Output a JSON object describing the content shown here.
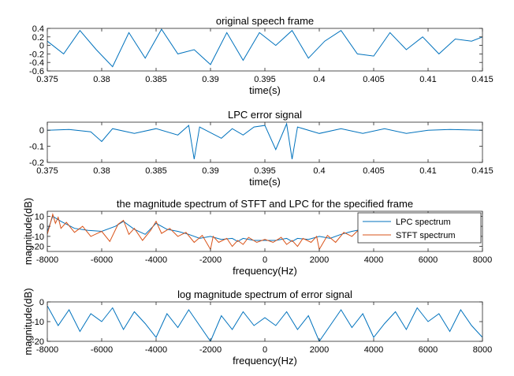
{
  "chart_data": [
    {
      "type": "line",
      "title": "original speech frame",
      "xlabel": "time(s)",
      "ylabel": "",
      "xlim": [
        0.375,
        0.415
      ],
      "ylim": [
        -0.6,
        0.4
      ],
      "xticks": [
        0.375,
        0.38,
        0.385,
        0.39,
        0.395,
        0.4,
        0.405,
        0.41,
        0.415
      ],
      "xtick_labels": [
        "0.375",
        "0.38",
        "0.385",
        "0.39",
        "0.395",
        "0.4",
        "0.405",
        "0.41",
        "0.415"
      ],
      "yticks": [
        -0.6,
        -0.4,
        -0.2,
        0,
        0.2,
        0.4
      ],
      "ytick_labels": [
        "-0.6",
        "-0.4",
        "-0.2",
        "0",
        "0.2",
        "0.4"
      ],
      "grid": false,
      "series": [
        {
          "color": "#0072BD",
          "x": [
            0.375,
            0.3765,
            0.378,
            0.3795,
            0.381,
            0.3825,
            0.384,
            0.3855,
            0.387,
            0.3885,
            0.39,
            0.3915,
            0.393,
            0.3945,
            0.396,
            0.3975,
            0.399,
            0.4005,
            0.402,
            0.4035,
            0.405,
            0.4065,
            0.408,
            0.4095,
            0.411,
            0.4125,
            0.414,
            0.415
          ],
          "y": [
            0.1,
            -0.2,
            0.35,
            -0.1,
            -0.5,
            0.3,
            -0.3,
            0.38,
            -0.2,
            -0.1,
            -0.45,
            0.3,
            -0.35,
            0.3,
            0.0,
            0.35,
            -0.3,
            0.1,
            0.35,
            -0.2,
            -0.25,
            0.3,
            -0.1,
            0.2,
            -0.2,
            0.15,
            0.1,
            0.2
          ]
        }
      ]
    },
    {
      "type": "line",
      "title": "LPC error signal",
      "xlabel": "time(s)",
      "ylabel": "",
      "xlim": [
        0.375,
        0.415
      ],
      "ylim": [
        -0.2,
        0.05
      ],
      "xticks": [
        0.375,
        0.38,
        0.385,
        0.39,
        0.395,
        0.4,
        0.405,
        0.41,
        0.415
      ],
      "xtick_labels": [
        "0.375",
        "0.38",
        "0.385",
        "0.39",
        "0.395",
        "0.4",
        "0.405",
        "0.41",
        "0.415"
      ],
      "yticks": [
        -0.2,
        -0.1,
        0
      ],
      "ytick_labels": [
        "-0.2",
        "-0.1",
        "0"
      ],
      "grid": false,
      "series": [
        {
          "color": "#0072BD",
          "x": [
            0.375,
            0.377,
            0.379,
            0.38,
            0.381,
            0.383,
            0.385,
            0.387,
            0.388,
            0.3885,
            0.389,
            0.391,
            0.392,
            0.393,
            0.394,
            0.395,
            0.396,
            0.397,
            0.3975,
            0.398,
            0.4,
            0.402,
            0.404,
            0.406,
            0.408,
            0.41,
            0.412,
            0.415
          ],
          "y": [
            0.0,
            0.005,
            -0.01,
            -0.07,
            0.01,
            -0.02,
            0.01,
            -0.03,
            0.03,
            -0.18,
            0.02,
            -0.05,
            0.01,
            -0.03,
            0.02,
            0.03,
            -0.12,
            0.04,
            -0.18,
            0.02,
            -0.02,
            0.01,
            -0.02,
            0.01,
            -0.02,
            0.0,
            0.005,
            0.0
          ]
        }
      ]
    },
    {
      "type": "line",
      "title": "the magnitude spectrum of STFT and LPC for the specified frame",
      "xlabel": "frequency(Hz)",
      "ylabel": "magnitude(dB)",
      "xlim": [
        -8000,
        8000
      ],
      "ylim": [
        -25,
        15
      ],
      "xticks": [
        -8000,
        -6000,
        -4000,
        -2000,
        0,
        2000,
        4000,
        6000,
        8000
      ],
      "xtick_labels": [
        "-8000",
        "-6000",
        "-4000",
        "-2000",
        "0",
        "2000",
        "4000",
        "6000",
        "8000"
      ],
      "yticks": [
        -20,
        -10,
        0,
        10
      ],
      "ytick_labels": [
        "-20",
        "-10",
        "0",
        "10"
      ],
      "grid": false,
      "legend": "top-right",
      "series": [
        {
          "name": "LPC spectrum",
          "color": "#0072BD",
          "x": [
            -8000,
            -7800,
            -7500,
            -7000,
            -6500,
            -6000,
            -5500,
            -5200,
            -4800,
            -4400,
            -4000,
            -3600,
            -3200,
            -2800,
            -2400,
            -2000,
            -1600,
            -1200,
            -1000,
            -800,
            -400,
            0,
            400,
            800,
            1000,
            1200,
            1600,
            2000,
            2400,
            2800,
            3200,
            3600
          ],
          "y": [
            -5,
            10,
            5,
            -2,
            -4,
            -5,
            0,
            5,
            -3,
            -8,
            3,
            -3,
            -5,
            -8,
            -12,
            -10,
            -13,
            -12,
            -15,
            -12,
            -14,
            -14,
            -14,
            -12,
            -15,
            -12,
            -13,
            -10,
            -12,
            -8,
            -5,
            -3
          ]
        },
        {
          "name": "STFT spectrum",
          "color": "#D95319",
          "x": [
            -8000,
            -7900,
            -7800,
            -7700,
            -7600,
            -7500,
            -7300,
            -7000,
            -6700,
            -6400,
            -6000,
            -5700,
            -5400,
            -5200,
            -5000,
            -4800,
            -4500,
            -4200,
            -4000,
            -3800,
            -3500,
            -3200,
            -2900,
            -2600,
            -2300,
            -2000,
            -1900,
            -1700,
            -1400,
            -1200,
            -1000,
            -800,
            -600,
            -300,
            0,
            300,
            600,
            800,
            1000,
            1200,
            1400,
            1700,
            1900,
            2000,
            2300,
            2600,
            2900,
            3200,
            3500,
            3600
          ],
          "y": [
            -8,
            2,
            12,
            3,
            9,
            -2,
            4,
            -6,
            0,
            -10,
            -5,
            -15,
            2,
            6,
            -8,
            -2,
            -14,
            -4,
            5,
            -7,
            -2,
            -10,
            -6,
            -16,
            -9,
            -23,
            -10,
            -16,
            -12,
            -20,
            -14,
            -18,
            -11,
            -16,
            -13,
            -16,
            -11,
            -18,
            -14,
            -20,
            -12,
            -16,
            -10,
            -23,
            -9,
            -16,
            -6,
            -10,
            -2,
            -4
          ]
        }
      ]
    },
    {
      "type": "line",
      "title": "log magnitude spectrum of error signal",
      "xlabel": "frequency(Hz)",
      "ylabel": "magnitude(dB)",
      "xlim": [
        -8000,
        8000
      ],
      "ylim": [
        -20,
        0
      ],
      "xticks": [
        -8000,
        -6000,
        -4000,
        -2000,
        0,
        2000,
        4000,
        6000,
        8000
      ],
      "xtick_labels": [
        "-8000",
        "-6000",
        "-4000",
        "-2000",
        "0",
        "2000",
        "4000",
        "6000",
        "8000"
      ],
      "yticks": [
        -20,
        -10,
        0
      ],
      "ytick_labels": [
        "-20",
        "-10",
        "0"
      ],
      "grid": false,
      "series": [
        {
          "color": "#0072BD",
          "x": [
            -8000,
            -7600,
            -7200,
            -6800,
            -6400,
            -6000,
            -5600,
            -5200,
            -4800,
            -4400,
            -4000,
            -3600,
            -3200,
            -2800,
            -2400,
            -2000,
            -1600,
            -1200,
            -800,
            -400,
            0,
            400,
            800,
            1200,
            1600,
            2000,
            2400,
            2800,
            3200,
            3600,
            4000,
            4400,
            4800,
            5200,
            5600,
            6000,
            6400,
            6800,
            7200,
            7600,
            8000
          ],
          "y": [
            -2,
            -12,
            -4,
            -15,
            -6,
            -10,
            -3,
            -14,
            -5,
            -11,
            -18,
            -6,
            -13,
            -4,
            -12,
            -20,
            -7,
            -14,
            -5,
            -12,
            -8,
            -12,
            -5,
            -14,
            -7,
            -20,
            -12,
            -4,
            -13,
            -6,
            -18,
            -11,
            -5,
            -14,
            -3,
            -10,
            -6,
            -15,
            -4,
            -12,
            -18
          ]
        }
      ]
    }
  ]
}
